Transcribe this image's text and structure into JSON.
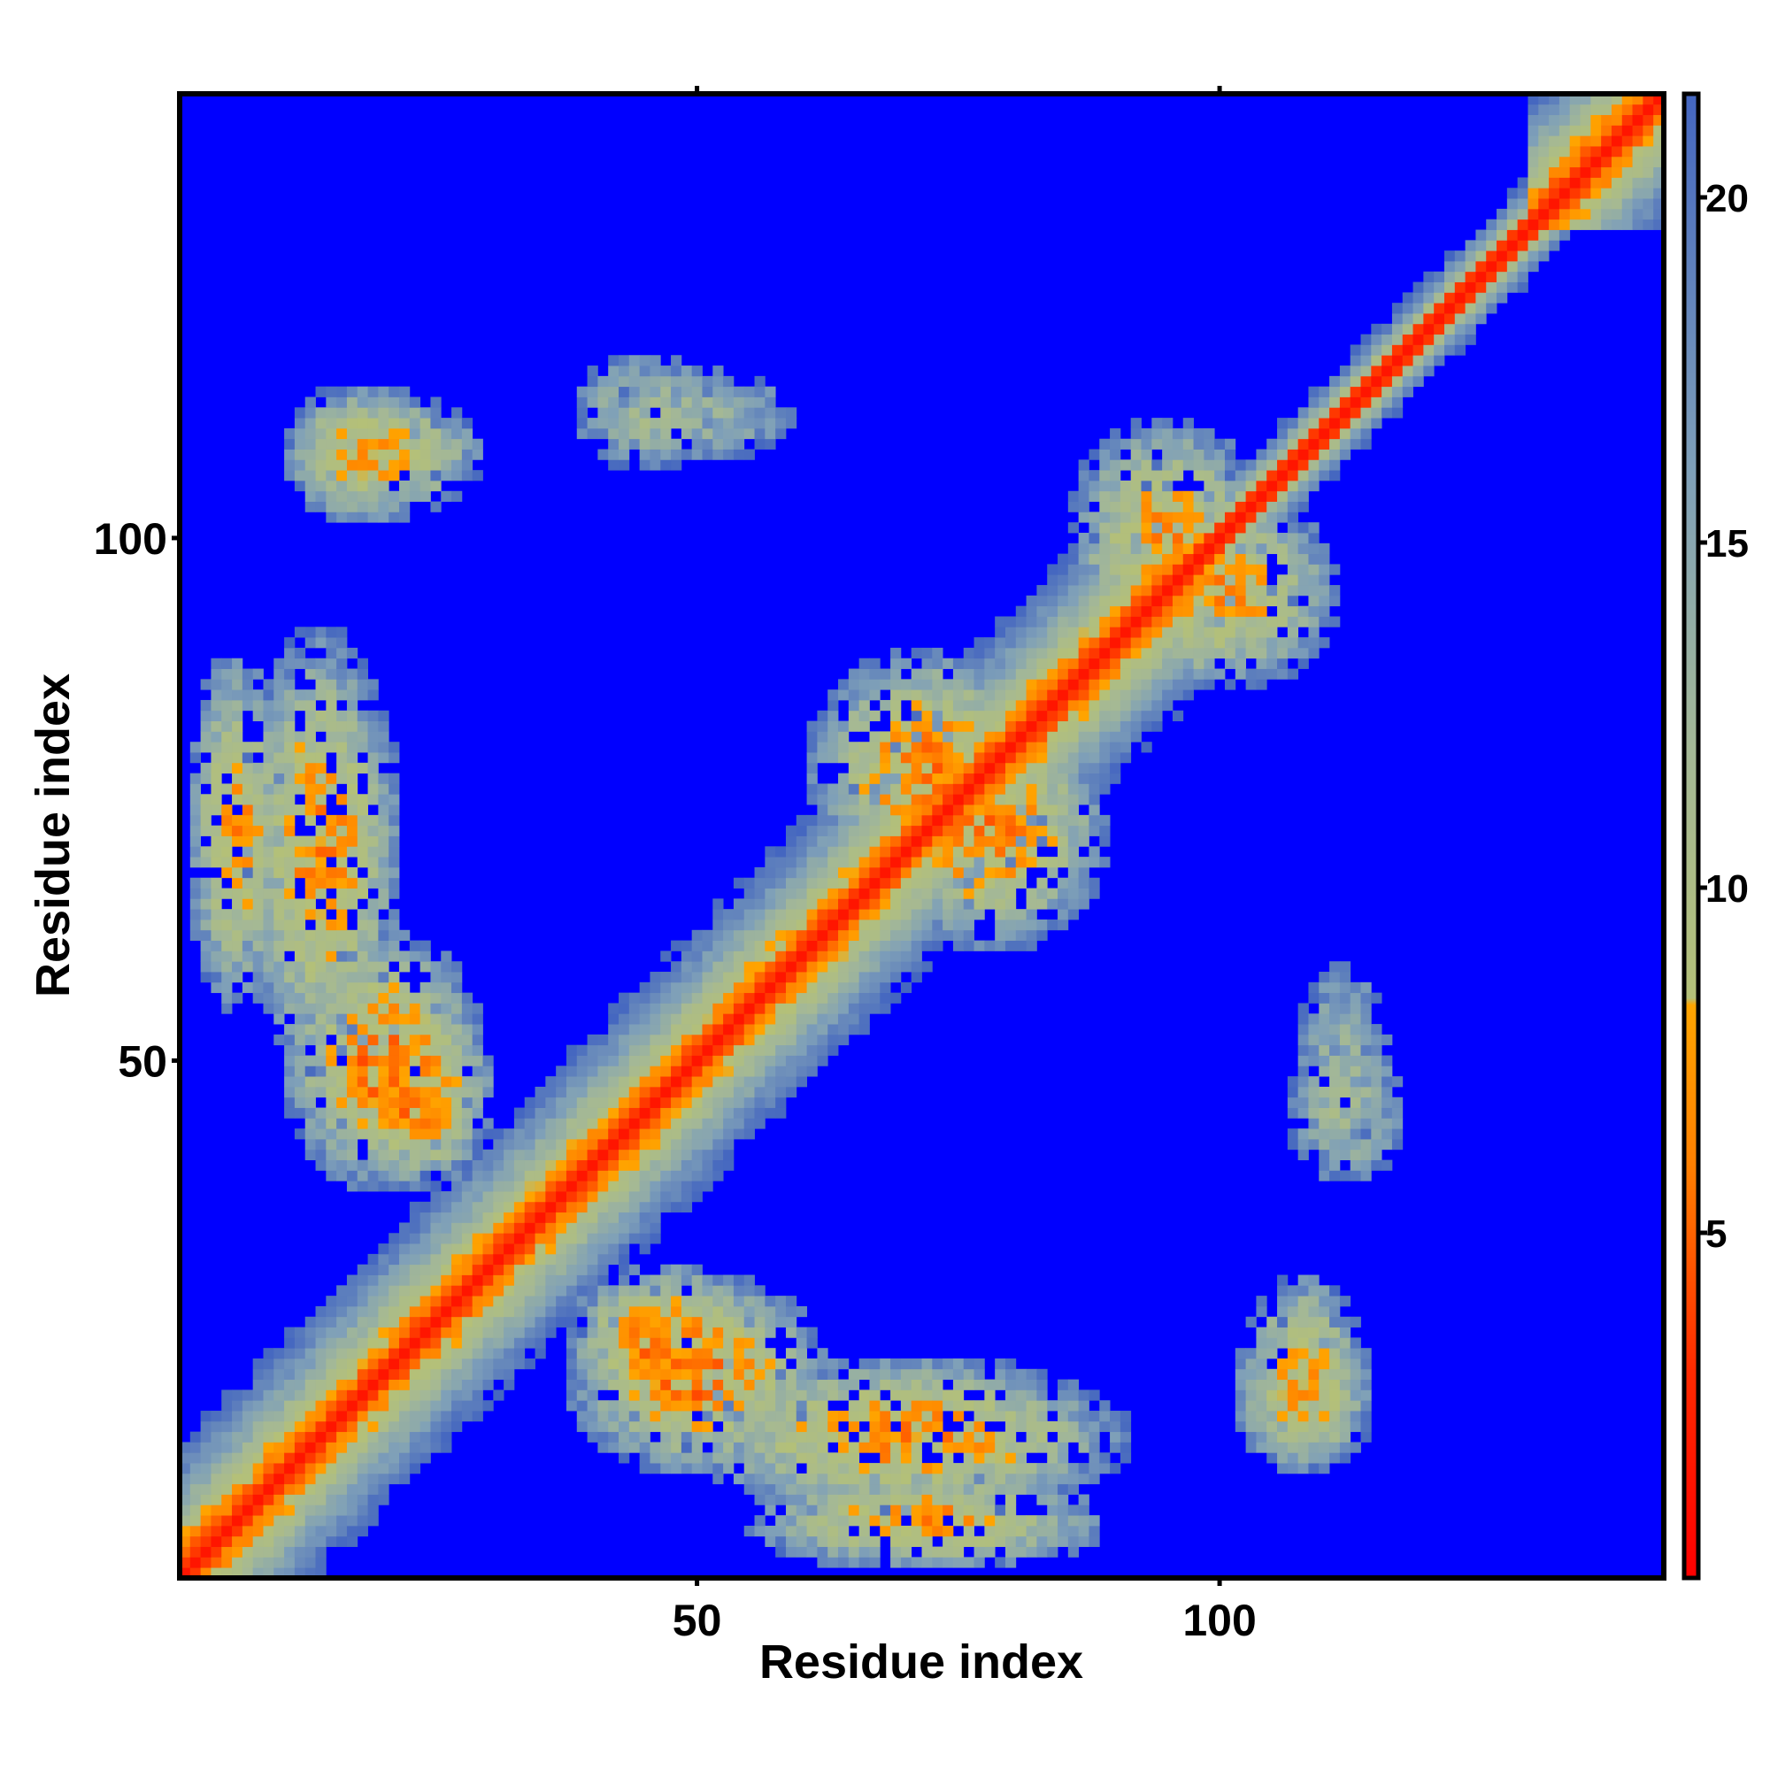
{
  "chart_data": {
    "type": "heatmap",
    "title": "",
    "xlabel": "Residue index",
    "ylabel": "Residue index",
    "n_residues": 142,
    "xlim": [
      1,
      142
    ],
    "ylim": [
      1,
      142
    ],
    "x_ticks": [
      50,
      100
    ],
    "y_ticks": [
      50,
      100
    ],
    "colorbar": {
      "ticks": [
        5,
        10,
        15,
        20
      ],
      "range": [
        0,
        21.5
      ],
      "stops": [
        {
          "value": 0,
          "color": "#ff0000"
        },
        {
          "value": 3,
          "color": "#ff2a00"
        },
        {
          "value": 6,
          "color": "#ff8000"
        },
        {
          "value": 8.3,
          "color": "#ffa500"
        },
        {
          "value": 8.4,
          "color": "#b4c078"
        },
        {
          "value": 12,
          "color": "#a4b896"
        },
        {
          "value": 16,
          "color": "#7fa0b8"
        },
        {
          "value": 21.5,
          "color": "#4466c0"
        }
      ],
      "background_color": "#0000ff",
      "cutoff": 21.5
    },
    "diagonal_band": {
      "helix_width": 2.5,
      "sheet_width": 8
    },
    "contact_regions": [
      {
        "x_center": 14,
        "y_center": 70,
        "x_halfwidth": 8,
        "y_halfwidth": 22,
        "min_distance": 6.5,
        "note": "antiparallel strip upper-left"
      },
      {
        "x_center": 23,
        "y_center": 47,
        "x_halfwidth": 8,
        "y_halfwidth": 10,
        "min_distance": 5.5
      },
      {
        "x_center": 50,
        "y_center": 20,
        "x_halfwidth": 13,
        "y_halfwidth": 10,
        "min_distance": 5.5
      },
      {
        "x_center": 72,
        "y_center": 6,
        "x_halfwidth": 18,
        "y_halfwidth": 5,
        "min_distance": 7
      },
      {
        "x_center": 20,
        "y_center": 108,
        "x_halfwidth": 10,
        "y_halfwidth": 6,
        "min_distance": 7.5
      },
      {
        "x_center": 50,
        "y_center": 112,
        "x_halfwidth": 10,
        "y_halfwidth": 5,
        "min_distance": 13
      },
      {
        "x_center": 108,
        "y_center": 18,
        "x_halfwidth": 7,
        "y_halfwidth": 8,
        "min_distance": 7.5
      },
      {
        "x_center": 112,
        "y_center": 45,
        "x_halfwidth": 6,
        "y_halfwidth": 7,
        "min_distance": 12
      },
      {
        "x_center": 78,
        "y_center": 72,
        "x_halfwidth": 12,
        "y_halfwidth": 12,
        "min_distance": 6
      },
      {
        "x_center": 100,
        "y_center": 95,
        "x_halfwidth": 12,
        "y_halfwidth": 10,
        "min_distance": 7
      }
    ]
  }
}
